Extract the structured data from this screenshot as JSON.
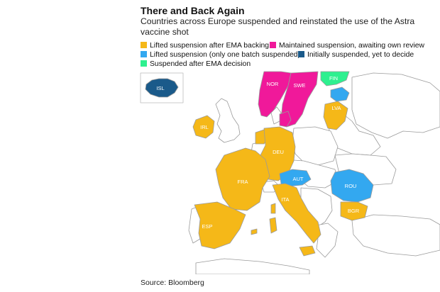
{
  "header": {
    "title": "There and Back Again",
    "subtitle": "Countries across Europe suspended and reinstated the use of the Astra vaccine shot"
  },
  "legend": [
    {
      "label": "Lifted suspension after EMA backing",
      "color": "#f5b818"
    },
    {
      "label": "Maintained suspension, awaiting own review",
      "color": "#f0199a"
    },
    {
      "label": "Lifted suspension (only one batch suspended)",
      "color": "#33a8f0"
    },
    {
      "label": "Initially suspended, yet to decide",
      "color": "#1a5a8a"
    },
    {
      "label": "Suspended after EMA decision",
      "color": "#2ef08f"
    }
  ],
  "countries": {
    "isl": {
      "code": "ISL",
      "status": "Initially suspended, yet to decide"
    },
    "irl": {
      "code": "IRL",
      "status": "Lifted suspension after EMA backing"
    },
    "nor": {
      "code": "NOR",
      "status": "Maintained suspension, awaiting own review"
    },
    "swe": {
      "code": "SWE",
      "status": "Maintained suspension, awaiting own review"
    },
    "fin": {
      "code": "FIN",
      "status": "Suspended after EMA decision"
    },
    "lva": {
      "code": "LVA",
      "status": "Lifted suspension after EMA backing"
    },
    "deu": {
      "code": "DEU",
      "status": "Lifted suspension after EMA backing"
    },
    "fra": {
      "code": "FRA",
      "status": "Lifted suspension after EMA backing"
    },
    "aut": {
      "code": "AUT",
      "status": "Lifted suspension (only one batch suspended)"
    },
    "rou": {
      "code": "ROU",
      "status": "Lifted suspension (only one batch suspended)"
    },
    "ita": {
      "code": "ITA",
      "status": "Lifted suspension after EMA backing"
    },
    "bgr": {
      "code": "BGR",
      "status": "Lifted suspension after EMA backing"
    },
    "esp": {
      "code": "ESP",
      "status": "Lifted suspension after EMA backing"
    }
  },
  "colors": {
    "lifted": "#f5b818",
    "maintained": "#f0199a",
    "one_batch": "#33a8f0",
    "yet_to_decide": "#1a5a8a",
    "after_ema": "#2ef08f",
    "other_land": "#ffffff",
    "border": "#9a9a9a"
  },
  "footer": {
    "source": "Source: Bloomberg"
  }
}
